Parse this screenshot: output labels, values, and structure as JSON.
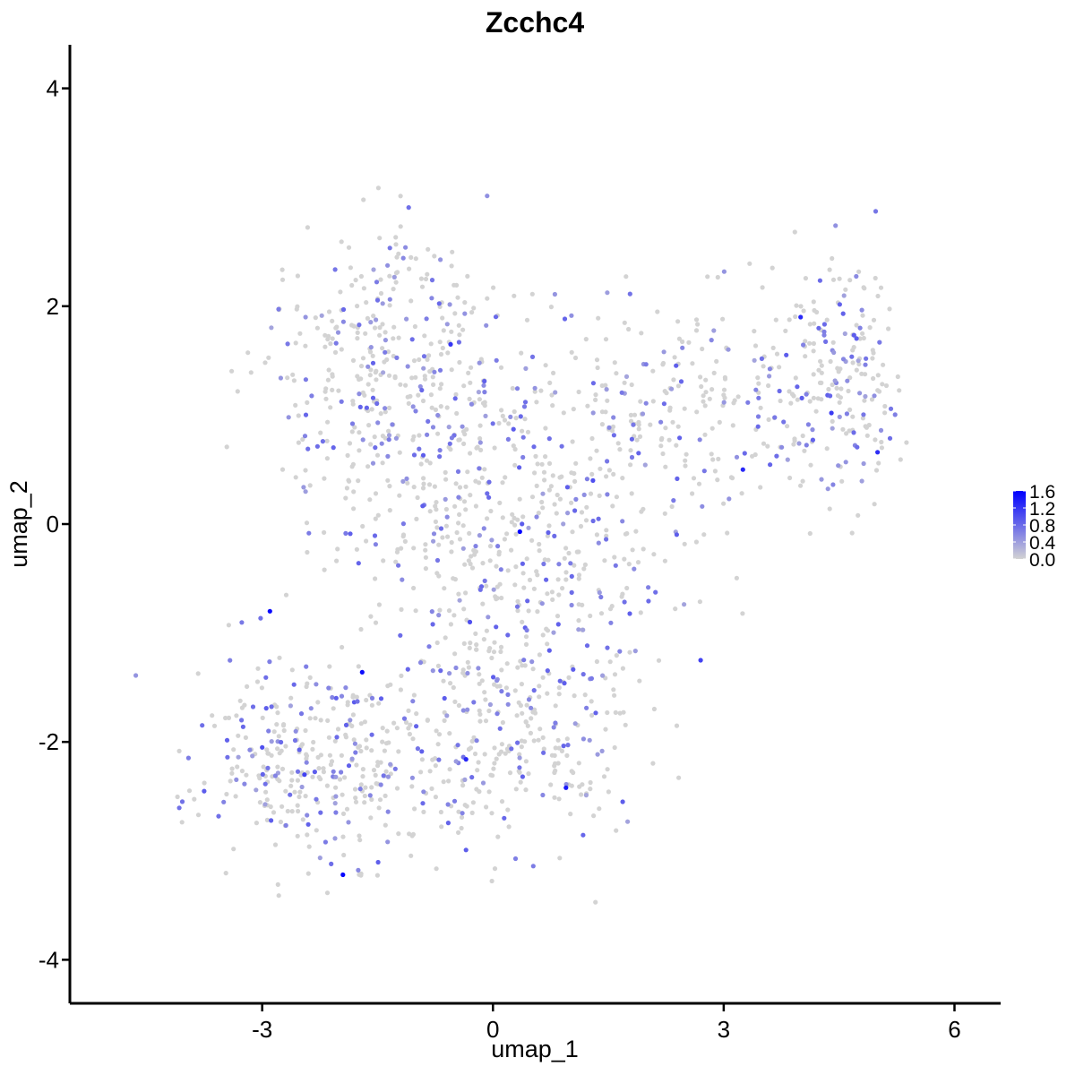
{
  "chart_data": {
    "type": "scatter",
    "title": "Zcchc4",
    "xlabel": "umap_1",
    "ylabel": "umap_2",
    "xlim": [
      -5.5,
      6.6
    ],
    "ylim": [
      -4.4,
      4.4
    ],
    "x_ticks": [
      -3,
      0,
      3,
      6
    ],
    "x_tick_labels": [
      "-3",
      "0",
      "3",
      "6"
    ],
    "y_ticks": [
      -4,
      -2,
      0,
      2,
      4
    ],
    "y_tick_labels": [
      "-4",
      "-2",
      "0",
      "2",
      "4"
    ],
    "grid": false,
    "legend": {
      "placement": "right",
      "type": "colorbar",
      "min": 0.0,
      "max": 1.6,
      "ticks": [
        0.0,
        0.4,
        0.8,
        1.2,
        1.6
      ],
      "tick_labels": [
        "0.0",
        "0.4",
        "0.8",
        "1.2",
        "1.6"
      ],
      "low_color": "#d3d3d3",
      "high_color": "#0000ff"
    },
    "colors": {
      "low": "#d3d3d3",
      "high": "#0000ff",
      "axis": "#000000"
    },
    "highlighted_points": [
      {
        "x": 0.35,
        "y": -0.07,
        "value": 1.6
      },
      {
        "x": -2.9,
        "y": -0.8,
        "value": 1.55
      },
      {
        "x": -1.7,
        "y": -1.36,
        "value": 1.5
      },
      {
        "x": -1.95,
        "y": -3.22,
        "value": 1.55
      },
      {
        "x": 0.95,
        "y": -2.42,
        "value": 1.4
      },
      {
        "x": -0.35,
        "y": -2.16,
        "value": 1.3
      },
      {
        "x": 4.0,
        "y": 1.9,
        "value": 1.3
      },
      {
        "x": 5.0,
        "y": 0.66,
        "value": 1.25
      },
      {
        "x": 3.25,
        "y": 0.5,
        "value": 1.3
      },
      {
        "x": -0.55,
        "y": 1.65,
        "value": 1.2
      },
      {
        "x": 2.7,
        "y": -1.25,
        "value": 1.1
      },
      {
        "x": 4.4,
        "y": 1.02,
        "value": 1.15
      },
      {
        "x": 1.3,
        "y": 0.4,
        "value": 1.0
      },
      {
        "x": -2.45,
        "y": -2.3,
        "value": 1.1
      },
      {
        "x": -0.3,
        "y": -0.9,
        "value": 1.0
      },
      {
        "x": -3.0,
        "y": -2.05,
        "value": 1.0
      }
    ],
    "clusters": [
      {
        "region": "upper-left lobe",
        "cx": -1.3,
        "cy": 1.4,
        "sx": 1.1,
        "sy": 0.9,
        "n": 380
      },
      {
        "region": "center body",
        "cx": 0.2,
        "cy": -0.2,
        "sx": 1.5,
        "sy": 1.2,
        "n": 520
      },
      {
        "region": "lower-left lobe",
        "cx": -2.3,
        "cy": -2.2,
        "sx": 1.0,
        "sy": 0.6,
        "n": 340
      },
      {
        "region": "upper-right arm",
        "cx": 2.8,
        "cy": 1.1,
        "sx": 1.3,
        "sy": 0.6,
        "n": 220
      },
      {
        "region": "right lobe",
        "cx": 4.6,
        "cy": 1.4,
        "sx": 0.6,
        "sy": 0.8,
        "n": 190
      },
      {
        "region": "lower-center",
        "cx": 0.3,
        "cy": -2.0,
        "sx": 1.0,
        "sy": 0.7,
        "n": 240
      }
    ],
    "expressing_fraction": 0.28
  }
}
